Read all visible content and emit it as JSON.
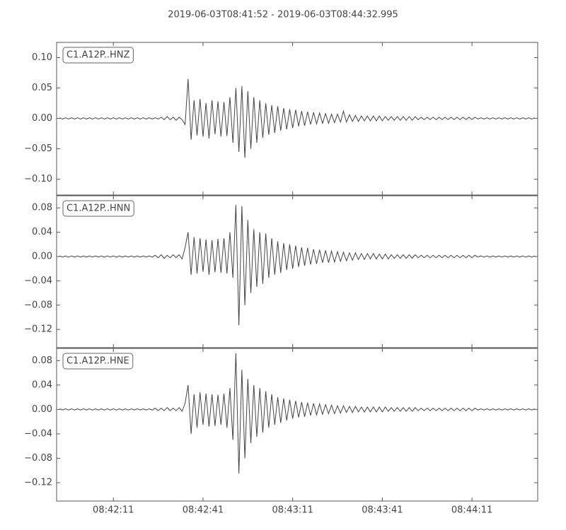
{
  "title": "2019-06-03T08:41:52  -  2019-06-03T08:44:32.995",
  "xlim": [
    "08:41:52",
    "08:44:32.995"
  ],
  "xticks": [
    "08:42:11",
    "08:42:41",
    "08:43:11",
    "08:43:41",
    "08:44:11"
  ],
  "x": [
    "08:41:53",
    "08:41:54",
    "08:41:55",
    "08:41:56",
    "08:41:57",
    "08:41:58",
    "08:41:59",
    "08:42:00",
    "08:42:01",
    "08:42:02",
    "08:42:03",
    "08:42:04",
    "08:42:05",
    "08:42:06",
    "08:42:07",
    "08:42:08",
    "08:42:09",
    "08:42:10",
    "08:42:11",
    "08:42:12",
    "08:42:13",
    "08:42:14",
    "08:42:15",
    "08:42:16",
    "08:42:17",
    "08:42:18",
    "08:42:19",
    "08:42:20",
    "08:42:21",
    "08:42:22",
    "08:42:23",
    "08:42:24",
    "08:42:25",
    "08:42:26",
    "08:42:27",
    "08:42:28",
    "08:42:29",
    "08:42:30",
    "08:42:31",
    "08:42:32",
    "08:42:33",
    "08:42:34",
    "08:42:35",
    "08:42:36",
    "08:42:37",
    "08:42:38",
    "08:42:39",
    "08:42:40",
    "08:42:41",
    "08:42:42",
    "08:42:43",
    "08:42:44",
    "08:42:45",
    "08:42:46",
    "08:42:47",
    "08:42:48",
    "08:42:49",
    "08:42:50",
    "08:42:51",
    "08:42:52",
    "08:42:53",
    "08:42:54",
    "08:42:55",
    "08:42:56",
    "08:42:57",
    "08:42:58",
    "08:42:59",
    "08:43:00",
    "08:43:01",
    "08:43:02",
    "08:43:03",
    "08:43:04",
    "08:43:05",
    "08:43:06",
    "08:43:07",
    "08:43:08",
    "08:43:09",
    "08:43:10",
    "08:43:11",
    "08:43:12",
    "08:43:13",
    "08:43:14",
    "08:43:15",
    "08:43:16",
    "08:43:17",
    "08:43:18",
    "08:43:19",
    "08:43:20",
    "08:43:21",
    "08:43:22",
    "08:43:23",
    "08:43:24",
    "08:43:25",
    "08:43:26",
    "08:43:27",
    "08:43:28",
    "08:43:29",
    "08:43:30",
    "08:43:31",
    "08:43:32",
    "08:43:33",
    "08:43:34",
    "08:43:35",
    "08:43:36",
    "08:43:37",
    "08:43:38",
    "08:43:39",
    "08:43:40",
    "08:43:41",
    "08:43:42",
    "08:43:43",
    "08:43:44",
    "08:43:45",
    "08:43:46",
    "08:43:47",
    "08:43:48",
    "08:43:49",
    "08:43:50",
    "08:43:51",
    "08:43:52",
    "08:43:53",
    "08:43:54",
    "08:43:55",
    "08:43:56",
    "08:43:57",
    "08:43:58",
    "08:43:59",
    "08:44:00",
    "08:44:01",
    "08:44:02",
    "08:44:03",
    "08:44:04",
    "08:44:05",
    "08:44:06",
    "08:44:07",
    "08:44:08",
    "08:44:09",
    "08:44:10",
    "08:44:11",
    "08:44:12",
    "08:44:13",
    "08:44:14",
    "08:44:15",
    "08:44:16",
    "08:44:17",
    "08:44:18",
    "08:44:19",
    "08:44:20",
    "08:44:21",
    "08:44:22",
    "08:44:23",
    "08:44:24",
    "08:44:25",
    "08:44:26",
    "08:44:27",
    "08:44:28",
    "08:44:29",
    "08:44:30",
    "08:44:31",
    "08:44:32"
  ],
  "chart_data": [
    {
      "type": "line",
      "ylim": [
        -0.126,
        0.125
      ],
      "yticks": [
        {
          "value": -0.1,
          "label": "−0.10"
        },
        {
          "value": -0.05,
          "label": "−0.05"
        },
        {
          "value": 0,
          "label": "0.00"
        },
        {
          "value": 0.05,
          "label": "0.05"
        },
        {
          "value": 0.1,
          "label": "0.10"
        }
      ],
      "series": [
        {
          "name": "C1.A12P..HNZ",
          "color": "#444444",
          "values": [
            0.001,
            -0.001,
            0.001,
            -0.001,
            0.001,
            -0.001,
            0.001,
            -0.001,
            0.001,
            -0.001,
            0.001,
            -0.001,
            0.001,
            -0.001,
            0.001,
            -0.001,
            0.001,
            -0.001,
            0.001,
            -0.001,
            0.001,
            -0.001,
            0.001,
            -0.001,
            0.001,
            -0.001,
            0.001,
            -0.001,
            0.001,
            -0.001,
            0.001,
            -0.001,
            0.001,
            -0.001,
            0.002,
            -0.002,
            0.003,
            -0.002,
            0.002,
            -0.003,
            0.002,
            -0.002,
            -0.01,
            0.065,
            -0.035,
            0.03,
            -0.028,
            0.032,
            -0.03,
            0.025,
            -0.033,
            0.03,
            -0.026,
            0.028,
            -0.03,
            0.027,
            -0.029,
            0.035,
            -0.04,
            0.05,
            -0.055,
            0.053,
            -0.065,
            0.045,
            -0.05,
            0.035,
            -0.04,
            0.03,
            -0.032,
            0.025,
            -0.027,
            0.022,
            -0.024,
            0.02,
            -0.02,
            0.017,
            -0.018,
            0.015,
            -0.016,
            0.014,
            -0.013,
            0.012,
            -0.012,
            0.011,
            -0.01,
            0.01,
            -0.009,
            0.009,
            -0.008,
            0.008,
            -0.008,
            0.007,
            -0.007,
            0.007,
            -0.006,
            0.012,
            -0.006,
            0.006,
            -0.005,
            0.005,
            -0.005,
            0.004,
            -0.004,
            0.004,
            -0.004,
            0.004,
            -0.004,
            0.004,
            -0.004,
            0.003,
            -0.003,
            0.003,
            -0.003,
            0.003,
            -0.003,
            0.003,
            -0.003,
            0.003,
            -0.003,
            0.003,
            -0.002,
            0.002,
            -0.002,
            0.002,
            -0.002,
            0.002,
            -0.002,
            0.002,
            -0.002,
            0.002,
            -0.002,
            0.002,
            -0.002,
            0.002,
            -0.002,
            0.002,
            -0.002,
            0.002,
            -0.002,
            0.002,
            -0.001,
            0.001,
            -0.001,
            0.001,
            -0.001,
            0.001,
            -0.001,
            0.001,
            -0.001,
            0.001,
            -0.001,
            0.001,
            -0.001,
            0.001,
            -0.001,
            0.001,
            -0.001,
            0.001,
            -0.001,
            0.001
          ]
        }
      ]
    },
    {
      "type": "line",
      "ylim": [
        -0.15,
        0.1
      ],
      "yticks": [
        {
          "value": -0.12,
          "label": "−0.12"
        },
        {
          "value": -0.08,
          "label": "−0.08"
        },
        {
          "value": -0.04,
          "label": "−0.04"
        },
        {
          "value": 0,
          "label": "0.00"
        },
        {
          "value": 0.04,
          "label": "0.04"
        },
        {
          "value": 0.08,
          "label": "0.08"
        }
      ],
      "series": [
        {
          "name": "C1.A12P..HNN",
          "color": "#444444",
          "values": [
            0.001,
            -0.001,
            0.001,
            -0.001,
            0.001,
            -0.001,
            0.001,
            -0.001,
            0.001,
            -0.001,
            0.001,
            -0.001,
            0.001,
            -0.001,
            0.001,
            -0.001,
            0.001,
            -0.001,
            0.001,
            -0.001,
            0.001,
            -0.001,
            0.001,
            -0.001,
            0.001,
            -0.001,
            0.001,
            -0.001,
            0.001,
            -0.001,
            0.001,
            -0.001,
            0.002,
            -0.002,
            0.003,
            -0.003,
            0.002,
            -0.002,
            0.003,
            -0.002,
            0.003,
            -0.004,
            0.015,
            0.04,
            -0.03,
            0.032,
            -0.028,
            0.03,
            -0.025,
            0.028,
            -0.03,
            0.027,
            -0.026,
            0.029,
            -0.027,
            0.03,
            -0.028,
            0.04,
            -0.035,
            0.085,
            -0.113,
            0.083,
            -0.08,
            0.06,
            -0.06,
            0.045,
            -0.05,
            0.04,
            -0.045,
            0.038,
            -0.035,
            0.03,
            -0.03,
            0.025,
            -0.027,
            0.022,
            -0.022,
            0.02,
            -0.02,
            0.018,
            -0.017,
            0.015,
            -0.015,
            0.014,
            -0.013,
            0.012,
            -0.012,
            0.011,
            -0.01,
            0.01,
            -0.01,
            0.009,
            -0.009,
            0.008,
            -0.008,
            0.007,
            -0.007,
            0.006,
            -0.006,
            0.006,
            -0.005,
            0.005,
            -0.005,
            0.005,
            -0.004,
            0.005,
            -0.004,
            0.004,
            -0.004,
            0.004,
            -0.004,
            0.003,
            -0.003,
            0.003,
            -0.003,
            0.003,
            -0.003,
            0.003,
            -0.003,
            0.003,
            -0.002,
            0.002,
            -0.002,
            0.002,
            -0.002,
            0.002,
            -0.002,
            0.002,
            -0.002,
            0.002,
            -0.002,
            0.002,
            -0.002,
            0.002,
            -0.002,
            0.002,
            -0.002,
            0.002,
            -0.002,
            0.002,
            -0.001,
            0.001,
            -0.001,
            0.001,
            -0.001,
            0.001,
            -0.001,
            0.001,
            -0.001,
            0.001,
            -0.001,
            0.001,
            -0.001,
            0.001,
            -0.001,
            0.001,
            -0.001,
            0.001,
            -0.001,
            0.001
          ]
        }
      ]
    },
    {
      "type": "line",
      "ylim": [
        -0.15,
        0.1
      ],
      "yticks": [
        {
          "value": -0.12,
          "label": "−0.12"
        },
        {
          "value": -0.08,
          "label": "−0.08"
        },
        {
          "value": -0.04,
          "label": "−0.04"
        },
        {
          "value": 0,
          "label": "0.00"
        },
        {
          "value": 0.04,
          "label": "0.04"
        },
        {
          "value": 0.08,
          "label": "0.08"
        }
      ],
      "series": [
        {
          "name": "C1.A12P..HNE",
          "color": "#444444",
          "values": [
            0.001,
            -0.001,
            0.001,
            -0.001,
            0.001,
            -0.001,
            0.001,
            -0.001,
            0.001,
            -0.001,
            0.001,
            -0.001,
            0.001,
            -0.001,
            0.001,
            -0.001,
            0.001,
            -0.001,
            0.001,
            -0.001,
            0.001,
            -0.001,
            0.001,
            -0.001,
            0.001,
            -0.001,
            0.001,
            -0.001,
            0.001,
            -0.001,
            0.001,
            -0.001,
            0.002,
            -0.002,
            0.002,
            -0.002,
            0.003,
            -0.002,
            0.002,
            -0.002,
            0.003,
            -0.003,
            0.01,
            0.04,
            -0.04,
            0.025,
            -0.03,
            0.028,
            -0.025,
            0.026,
            -0.028,
            0.025,
            -0.027,
            0.024,
            -0.025,
            0.026,
            -0.03,
            0.035,
            -0.05,
            0.092,
            -0.105,
            0.065,
            -0.08,
            0.05,
            -0.055,
            0.04,
            -0.045,
            0.035,
            -0.038,
            0.03,
            -0.03,
            0.025,
            -0.025,
            0.02,
            -0.022,
            0.018,
            -0.018,
            0.016,
            -0.015,
            0.014,
            -0.013,
            0.012,
            -0.012,
            0.011,
            -0.01,
            0.01,
            -0.009,
            0.009,
            -0.008,
            0.008,
            -0.007,
            0.007,
            -0.007,
            0.006,
            -0.006,
            0.006,
            -0.005,
            0.005,
            -0.005,
            0.005,
            -0.004,
            0.004,
            -0.004,
            0.004,
            -0.004,
            0.004,
            -0.004,
            0.004,
            -0.004,
            0.004,
            -0.003,
            0.003,
            -0.003,
            0.003,
            -0.003,
            0.003,
            -0.003,
            0.003,
            -0.003,
            0.003,
            -0.002,
            0.002,
            -0.002,
            0.002,
            -0.002,
            0.002,
            -0.002,
            0.002,
            -0.002,
            0.002,
            -0.002,
            0.002,
            -0.002,
            0.002,
            -0.002,
            0.002,
            -0.002,
            0.002,
            -0.002,
            0.002,
            -0.001,
            0.001,
            -0.001,
            0.001,
            -0.001,
            0.001,
            -0.001,
            0.001,
            -0.001,
            0.001,
            -0.001,
            0.001,
            -0.001,
            0.001,
            -0.001,
            0.001,
            -0.001,
            0.001,
            -0.001,
            0.001
          ]
        }
      ]
    }
  ]
}
